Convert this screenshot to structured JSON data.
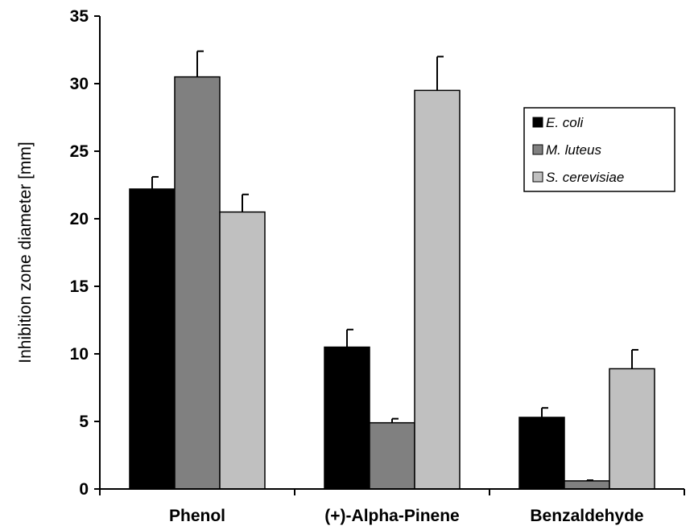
{
  "chart_data": {
    "type": "bar",
    "title": "",
    "xlabel": "",
    "ylabel": "Inhibition zone diameter [mm]",
    "ylim": [
      0,
      35
    ],
    "yticks": [
      "0",
      "5",
      "10",
      "15",
      "20",
      "25",
      "30",
      "35"
    ],
    "grid": false,
    "legend_position": "top-right",
    "categories": [
      "Phenol",
      "(+)-Alpha-Pinene",
      "Benzaldehyde"
    ],
    "series": [
      {
        "name": "E. coli",
        "color": "#000000",
        "values": [
          22.2,
          10.5,
          5.3
        ],
        "errors": [
          0.9,
          1.3,
          0.7
        ]
      },
      {
        "name": "M. luteus",
        "color": "#808080",
        "values": [
          30.5,
          4.9,
          0.6
        ],
        "errors": [
          1.9,
          0.3,
          0.05
        ]
      },
      {
        "name": "S. cerevisiae",
        "color": "#c0c0c0",
        "values": [
          20.5,
          29.5,
          8.9
        ],
        "errors": [
          1.3,
          2.5,
          1.4
        ]
      }
    ]
  }
}
